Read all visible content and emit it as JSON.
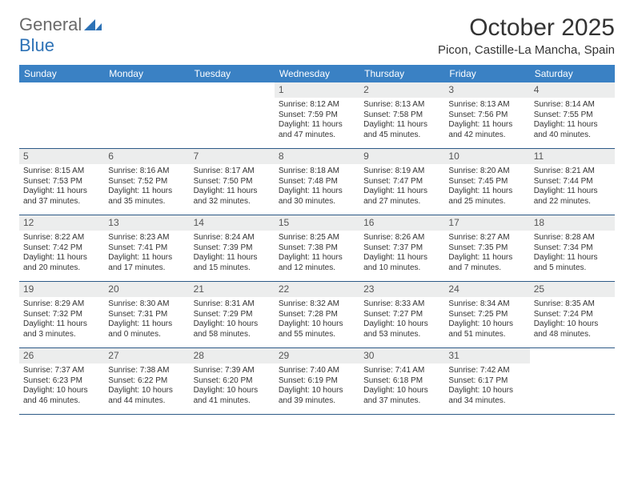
{
  "brand": {
    "word1": "General",
    "word2": "Blue"
  },
  "title": "October 2025",
  "location": "Picon, Castille-La Mancha, Spain",
  "colors": {
    "header_bg": "#3a81c4",
    "header_text": "#ffffff",
    "daynum_bg": "#eceded",
    "row_border": "#2d5a87",
    "brand_gray": "#6a6a6a",
    "brand_blue": "#2d72b6"
  },
  "dow": [
    "Sunday",
    "Monday",
    "Tuesday",
    "Wednesday",
    "Thursday",
    "Friday",
    "Saturday"
  ],
  "weeks": [
    [
      {
        "n": "",
        "sr": "",
        "ss": "",
        "dl": ""
      },
      {
        "n": "",
        "sr": "",
        "ss": "",
        "dl": ""
      },
      {
        "n": "",
        "sr": "",
        "ss": "",
        "dl": ""
      },
      {
        "n": "1",
        "sr": "Sunrise: 8:12 AM",
        "ss": "Sunset: 7:59 PM",
        "dl": "Daylight: 11 hours and 47 minutes."
      },
      {
        "n": "2",
        "sr": "Sunrise: 8:13 AM",
        "ss": "Sunset: 7:58 PM",
        "dl": "Daylight: 11 hours and 45 minutes."
      },
      {
        "n": "3",
        "sr": "Sunrise: 8:13 AM",
        "ss": "Sunset: 7:56 PM",
        "dl": "Daylight: 11 hours and 42 minutes."
      },
      {
        "n": "4",
        "sr": "Sunrise: 8:14 AM",
        "ss": "Sunset: 7:55 PM",
        "dl": "Daylight: 11 hours and 40 minutes."
      }
    ],
    [
      {
        "n": "5",
        "sr": "Sunrise: 8:15 AM",
        "ss": "Sunset: 7:53 PM",
        "dl": "Daylight: 11 hours and 37 minutes."
      },
      {
        "n": "6",
        "sr": "Sunrise: 8:16 AM",
        "ss": "Sunset: 7:52 PM",
        "dl": "Daylight: 11 hours and 35 minutes."
      },
      {
        "n": "7",
        "sr": "Sunrise: 8:17 AM",
        "ss": "Sunset: 7:50 PM",
        "dl": "Daylight: 11 hours and 32 minutes."
      },
      {
        "n": "8",
        "sr": "Sunrise: 8:18 AM",
        "ss": "Sunset: 7:48 PM",
        "dl": "Daylight: 11 hours and 30 minutes."
      },
      {
        "n": "9",
        "sr": "Sunrise: 8:19 AM",
        "ss": "Sunset: 7:47 PM",
        "dl": "Daylight: 11 hours and 27 minutes."
      },
      {
        "n": "10",
        "sr": "Sunrise: 8:20 AM",
        "ss": "Sunset: 7:45 PM",
        "dl": "Daylight: 11 hours and 25 minutes."
      },
      {
        "n": "11",
        "sr": "Sunrise: 8:21 AM",
        "ss": "Sunset: 7:44 PM",
        "dl": "Daylight: 11 hours and 22 minutes."
      }
    ],
    [
      {
        "n": "12",
        "sr": "Sunrise: 8:22 AM",
        "ss": "Sunset: 7:42 PM",
        "dl": "Daylight: 11 hours and 20 minutes."
      },
      {
        "n": "13",
        "sr": "Sunrise: 8:23 AM",
        "ss": "Sunset: 7:41 PM",
        "dl": "Daylight: 11 hours and 17 minutes."
      },
      {
        "n": "14",
        "sr": "Sunrise: 8:24 AM",
        "ss": "Sunset: 7:39 PM",
        "dl": "Daylight: 11 hours and 15 minutes."
      },
      {
        "n": "15",
        "sr": "Sunrise: 8:25 AM",
        "ss": "Sunset: 7:38 PM",
        "dl": "Daylight: 11 hours and 12 minutes."
      },
      {
        "n": "16",
        "sr": "Sunrise: 8:26 AM",
        "ss": "Sunset: 7:37 PM",
        "dl": "Daylight: 11 hours and 10 minutes."
      },
      {
        "n": "17",
        "sr": "Sunrise: 8:27 AM",
        "ss": "Sunset: 7:35 PM",
        "dl": "Daylight: 11 hours and 7 minutes."
      },
      {
        "n": "18",
        "sr": "Sunrise: 8:28 AM",
        "ss": "Sunset: 7:34 PM",
        "dl": "Daylight: 11 hours and 5 minutes."
      }
    ],
    [
      {
        "n": "19",
        "sr": "Sunrise: 8:29 AM",
        "ss": "Sunset: 7:32 PM",
        "dl": "Daylight: 11 hours and 3 minutes."
      },
      {
        "n": "20",
        "sr": "Sunrise: 8:30 AM",
        "ss": "Sunset: 7:31 PM",
        "dl": "Daylight: 11 hours and 0 minutes."
      },
      {
        "n": "21",
        "sr": "Sunrise: 8:31 AM",
        "ss": "Sunset: 7:29 PM",
        "dl": "Daylight: 10 hours and 58 minutes."
      },
      {
        "n": "22",
        "sr": "Sunrise: 8:32 AM",
        "ss": "Sunset: 7:28 PM",
        "dl": "Daylight: 10 hours and 55 minutes."
      },
      {
        "n": "23",
        "sr": "Sunrise: 8:33 AM",
        "ss": "Sunset: 7:27 PM",
        "dl": "Daylight: 10 hours and 53 minutes."
      },
      {
        "n": "24",
        "sr": "Sunrise: 8:34 AM",
        "ss": "Sunset: 7:25 PM",
        "dl": "Daylight: 10 hours and 51 minutes."
      },
      {
        "n": "25",
        "sr": "Sunrise: 8:35 AM",
        "ss": "Sunset: 7:24 PM",
        "dl": "Daylight: 10 hours and 48 minutes."
      }
    ],
    [
      {
        "n": "26",
        "sr": "Sunrise: 7:37 AM",
        "ss": "Sunset: 6:23 PM",
        "dl": "Daylight: 10 hours and 46 minutes."
      },
      {
        "n": "27",
        "sr": "Sunrise: 7:38 AM",
        "ss": "Sunset: 6:22 PM",
        "dl": "Daylight: 10 hours and 44 minutes."
      },
      {
        "n": "28",
        "sr": "Sunrise: 7:39 AM",
        "ss": "Sunset: 6:20 PM",
        "dl": "Daylight: 10 hours and 41 minutes."
      },
      {
        "n": "29",
        "sr": "Sunrise: 7:40 AM",
        "ss": "Sunset: 6:19 PM",
        "dl": "Daylight: 10 hours and 39 minutes."
      },
      {
        "n": "30",
        "sr": "Sunrise: 7:41 AM",
        "ss": "Sunset: 6:18 PM",
        "dl": "Daylight: 10 hours and 37 minutes."
      },
      {
        "n": "31",
        "sr": "Sunrise: 7:42 AM",
        "ss": "Sunset: 6:17 PM",
        "dl": "Daylight: 10 hours and 34 minutes."
      },
      {
        "n": "",
        "sr": "",
        "ss": "",
        "dl": ""
      }
    ]
  ]
}
